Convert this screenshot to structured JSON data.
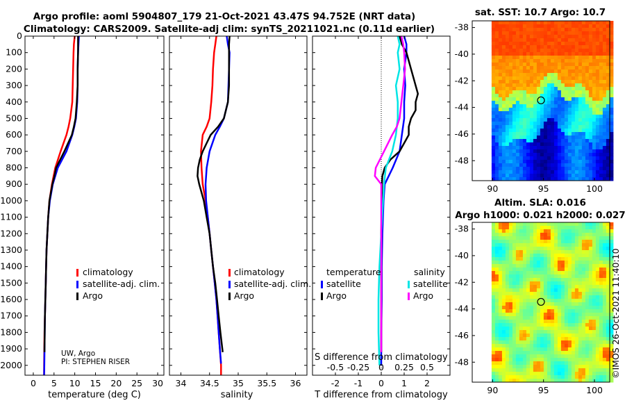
{
  "figure": {
    "title_line1": "Argo profile: aoml 5904807_179 21-Oct-2021 43.47S 94.752E (NRT data)",
    "title_line2": "Climatology: CARS2009. Satellite-adj clim: synTS_20211021.nc (0.11d earlier)",
    "credit_line1": "UW, Argo",
    "credit_line2": "PI: STEPHEN RISER",
    "watermark": "©IMOS 26-Oct-2021 11:40:10"
  },
  "colors": {
    "climatology": "#ff0000",
    "satellite_adj": "#0000ff",
    "argo": "#000000",
    "salinity_satellite": "#00e5e5",
    "salinity_argo": "#ff00ff"
  },
  "chart_data": [
    {
      "type": "line",
      "name": "temperature",
      "xlabel": "temperature (deg C)",
      "ylabel": "",
      "xlim": [
        -2,
        31.5
      ],
      "ylim": [
        2060,
        0
      ],
      "x_ticks": [
        "0",
        "5",
        "10",
        "15",
        "20",
        "25",
        "30"
      ],
      "y_ticks": [
        "0",
        "100",
        "200",
        "300",
        "400",
        "500",
        "600",
        "700",
        "800",
        "900",
        "1000",
        "1100",
        "1200",
        "1300",
        "1400",
        "1500",
        "1600",
        "1700",
        "1800",
        "1900",
        "2000"
      ],
      "legend": [
        "climatology",
        "satellite-adj. clim.",
        "Argo"
      ],
      "series": [
        {
          "name": "climatology",
          "depth": [
            0,
            50,
            100,
            200,
            300,
            400,
            500,
            550,
            600,
            700,
            800,
            900,
            1000,
            1100,
            1200,
            1300,
            1400,
            1500,
            1600,
            1700,
            1800,
            1900,
            2000,
            2060
          ],
          "values": [
            10.0,
            9.8,
            9.7,
            9.6,
            9.5,
            9.4,
            8.9,
            8.5,
            8.0,
            6.6,
            5.3,
            4.5,
            3.9,
            3.6,
            3.4,
            3.2,
            3.1,
            3.0,
            2.9,
            2.8,
            2.7,
            2.65,
            2.6,
            2.6
          ]
        },
        {
          "name": "satellite-adj. clim.",
          "depth": [
            0,
            50,
            100,
            200,
            300,
            400,
            500,
            550,
            600,
            700,
            800,
            900,
            1000,
            1100,
            1200,
            1300,
            1400,
            1500,
            1600,
            1700,
            1800,
            1900,
            2000,
            2060
          ],
          "values": [
            11.0,
            10.9,
            10.8,
            10.7,
            10.7,
            10.6,
            10.3,
            9.9,
            9.4,
            8.0,
            5.9,
            4.7,
            4.0,
            3.6,
            3.4,
            3.2,
            3.1,
            3.0,
            2.9,
            2.8,
            2.75,
            2.7,
            2.65,
            2.6
          ]
        },
        {
          "name": "Argo",
          "depth": [
            0,
            50,
            100,
            200,
            300,
            400,
            500,
            550,
            600,
            700,
            800,
            850,
            900,
            1000,
            1100,
            1200,
            1300,
            1400,
            1500,
            1600,
            1700,
            1800,
            1900,
            1920
          ],
          "values": [
            10.8,
            10.8,
            10.8,
            10.7,
            10.7,
            10.5,
            10.2,
            9.8,
            9.3,
            7.5,
            5.5,
            5.1,
            4.6,
            3.9,
            3.6,
            3.4,
            3.2,
            3.1,
            3.0,
            2.9,
            2.8,
            2.75,
            2.7,
            2.7
          ]
        }
      ]
    },
    {
      "type": "line",
      "name": "salinity",
      "xlabel": "salinity",
      "ylabel": "",
      "xlim": [
        33.8,
        36.2
      ],
      "ylim": [
        2060,
        0
      ],
      "x_ticks": [
        "34",
        "34.5",
        "35",
        "35.5",
        "36"
      ],
      "legend": [
        "climatology",
        "satellite-adj. clim.",
        "Argo"
      ],
      "series": [
        {
          "name": "climatology",
          "depth": [
            0,
            50,
            100,
            200,
            300,
            400,
            500,
            550,
            600,
            700,
            800,
            900,
            1000,
            1100,
            1200,
            1300,
            1400,
            1500,
            1600,
            1700,
            1800,
            1900,
            2000,
            2060
          ],
          "values": [
            34.62,
            34.6,
            34.58,
            34.56,
            34.55,
            34.53,
            34.5,
            34.45,
            34.38,
            34.35,
            34.36,
            34.38,
            34.43,
            34.47,
            34.5,
            34.53,
            34.56,
            34.59,
            34.62,
            34.64,
            34.66,
            34.68,
            34.7,
            34.7
          ]
        },
        {
          "name": "satellite-adj. clim.",
          "depth": [
            0,
            50,
            100,
            200,
            300,
            400,
            500,
            550,
            600,
            700,
            800,
            900,
            1000,
            1100,
            1200,
            1300,
            1400,
            1500,
            1600,
            1700,
            1800,
            1900,
            1990
          ],
          "values": [
            34.8,
            34.82,
            34.85,
            34.84,
            34.83,
            34.82,
            34.75,
            34.68,
            34.6,
            34.5,
            34.45,
            34.43,
            34.44,
            34.47,
            34.5,
            34.53,
            34.56,
            34.59,
            34.62,
            34.64,
            34.66,
            34.68,
            34.7
          ]
        },
        {
          "name": "Argo",
          "depth": [
            0,
            50,
            100,
            200,
            300,
            400,
            500,
            550,
            600,
            650,
            700,
            750,
            800,
            850,
            900,
            1000,
            1100,
            1200,
            1300,
            1400,
            1500,
            1600,
            1700,
            1800,
            1920
          ],
          "values": [
            34.85,
            34.84,
            34.84,
            34.84,
            34.84,
            34.82,
            34.75,
            34.65,
            34.52,
            34.45,
            34.38,
            34.33,
            34.3,
            34.29,
            34.32,
            34.4,
            34.45,
            34.5,
            34.53,
            34.56,
            34.6,
            34.63,
            34.66,
            34.69,
            34.73
          ]
        }
      ]
    },
    {
      "type": "line",
      "name": "difference",
      "xlabel": "T difference from climatology",
      "xlabel_top": "S difference from climatology",
      "ylabel": "",
      "xlim": [
        -3,
        3
      ],
      "ylim": [
        2060,
        0
      ],
      "x_ticks": [
        "-2",
        "-1",
        "0",
        "1",
        "2"
      ],
      "s_ticks": [
        "-0.5",
        "-0.25",
        "0",
        "0.25",
        "0.5"
      ],
      "legend_temperature_title": "temperature",
      "legend_salinity_title": "salinity",
      "legend_temperature": [
        "satellite",
        "Argo"
      ],
      "legend_salinity": [
        "satellite",
        "Argo"
      ],
      "series": [
        {
          "name": "T satellite",
          "depth": [
            0,
            50,
            100,
            200,
            300,
            400,
            500,
            600,
            700,
            800,
            900,
            1000,
            1200,
            1400,
            1600,
            1800,
            2000
          ],
          "values": [
            1.0,
            1.1,
            1.1,
            1.0,
            1.05,
            1.0,
            1.0,
            0.9,
            0.8,
            0.5,
            0.15,
            0.1,
            0.05,
            0.02,
            0.02,
            0.0,
            0.0
          ]
        },
        {
          "name": "T Argo",
          "depth": [
            0,
            50,
            100,
            150,
            200,
            250,
            300,
            350,
            400,
            450,
            500,
            550,
            600,
            650,
            700,
            750,
            800,
            850,
            900,
            1000,
            1200,
            1400,
            1600,
            1800,
            1920
          ],
          "values": [
            0.8,
            0.9,
            1.1,
            1.2,
            1.3,
            1.4,
            1.5,
            1.6,
            1.5,
            1.5,
            1.3,
            1.2,
            1.2,
            1.0,
            0.8,
            0.4,
            0.15,
            0.05,
            0.03,
            0.02,
            0.0,
            0.0,
            0.0,
            0.0,
            0.0
          ]
        },
        {
          "name": "S satellite",
          "depth": [
            0,
            50,
            100,
            200,
            300,
            400,
            500,
            600,
            700,
            800,
            900,
            1000,
            1200,
            1400,
            1600,
            1800,
            2000
          ],
          "values": [
            0.18,
            0.2,
            0.18,
            0.2,
            0.16,
            0.18,
            0.18,
            0.16,
            0.12,
            0.05,
            0.03,
            0.02,
            0.0,
            -0.02,
            -0.03,
            -0.03,
            -0.02
          ]
        },
        {
          "name": "S Argo",
          "depth": [
            0,
            50,
            100,
            200,
            300,
            400,
            500,
            550,
            600,
            700,
            800,
            850,
            900,
            1000,
            1200,
            1400,
            1600,
            1800,
            1920
          ],
          "values": [
            0.22,
            0.24,
            0.25,
            0.26,
            0.24,
            0.22,
            0.2,
            0.17,
            0.12,
            0.03,
            -0.06,
            -0.07,
            0.0,
            0.0,
            0.0,
            0.0,
            0.0,
            0.0,
            0.0
          ]
        }
      ]
    },
    {
      "type": "heatmap",
      "name": "sst_map",
      "title": "sat. SST: 10.7 Argo: 10.7",
      "xlim": [
        88,
        101.5
      ],
      "ylim": [
        -49.5,
        -37.5
      ],
      "x_ticks": [
        "90",
        "95",
        "100"
      ],
      "y_ticks": [
        "-38",
        "-40",
        "-42",
        "-44",
        "-46",
        "-48"
      ],
      "marker": {
        "lon": 94.75,
        "lat": -43.47
      }
    },
    {
      "type": "heatmap",
      "name": "sla_map",
      "title_line1": "Altim. SLA: 0.016",
      "title_line2": "Argo h1000: 0.021 h2000: 0.027",
      "xlim": [
        88,
        101.5
      ],
      "ylim": [
        -49.5,
        -37.5
      ],
      "x_ticks": [
        "90",
        "95",
        "100"
      ],
      "y_ticks": [
        "-38",
        "-40",
        "-42",
        "-44",
        "-46",
        "-48"
      ],
      "marker": {
        "lon": 94.75,
        "lat": -43.47
      }
    }
  ]
}
